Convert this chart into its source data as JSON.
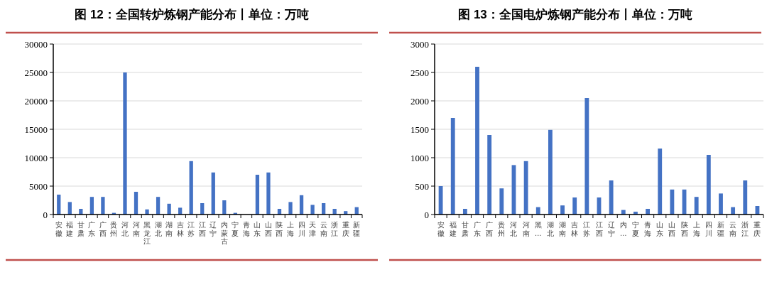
{
  "chart_data": [
    {
      "type": "bar",
      "title": "图 12：全国转炉炼钢产能分布丨单位：万吨",
      "categories": [
        "安徽",
        "福建",
        "甘肃",
        "广东",
        "广西",
        "贵州",
        "河北",
        "河南",
        "黑龙江",
        "湖北",
        "湖南",
        "吉林",
        "江苏",
        "江西",
        "辽宁",
        "内蒙古",
        "宁夏",
        "青海",
        "山东",
        "山西",
        "陕西",
        "上海",
        "四川",
        "天津",
        "云南",
        "浙江",
        "重庆",
        "新疆"
      ],
      "values": [
        3500,
        2200,
        1000,
        3100,
        3100,
        300,
        25000,
        4000,
        900,
        3100,
        1900,
        1200,
        9400,
        2000,
        7400,
        2500,
        300,
        0,
        7000,
        7400,
        1000,
        2200,
        3400,
        1700,
        2000,
        1000,
        600,
        1300
      ],
      "color": "#4472c4",
      "ylim": [
        0,
        30000
      ],
      "yticks": [
        0,
        5000,
        10000,
        15000,
        20000,
        25000,
        30000
      ],
      "grid": "y"
    },
    {
      "type": "bar",
      "title": "图 13：全国电炉炼钢产能分布丨单位：万吨",
      "categories": [
        "安徽",
        "福建",
        "甘肃",
        "广东",
        "广西",
        "贵州",
        "河北",
        "河南",
        "黑…",
        "湖北",
        "湖南",
        "吉林",
        "江苏",
        "江西",
        "辽宁",
        "内…",
        "宁夏",
        "青海",
        "山东",
        "山西",
        "陕西",
        "上海",
        "四川",
        "新疆",
        "云南",
        "浙江",
        "重庆"
      ],
      "values": [
        500,
        1700,
        100,
        2600,
        1400,
        460,
        870,
        940,
        130,
        1490,
        160,
        300,
        2050,
        300,
        600,
        80,
        50,
        100,
        1160,
        440,
        440,
        310,
        1050,
        370,
        130,
        600,
        150
      ],
      "color": "#4472c4",
      "ylim": [
        0,
        3000
      ],
      "yticks": [
        0,
        500,
        1000,
        1500,
        2000,
        2500,
        3000
      ],
      "grid": "y"
    }
  ]
}
